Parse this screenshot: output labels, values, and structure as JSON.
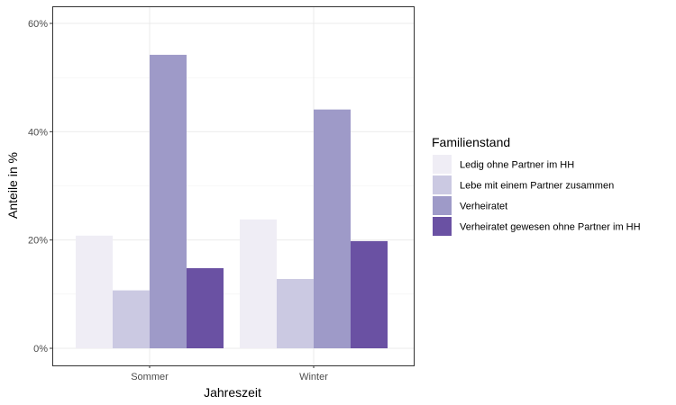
{
  "chart_data": {
    "type": "bar",
    "categories": [
      "Sommer",
      "Winter"
    ],
    "series": [
      {
        "name": "Ledig ohne Partner im HH",
        "values": [
          20.8,
          23.8
        ],
        "color": "#efedf5"
      },
      {
        "name": "Lebe mit einem Partner zusammen",
        "values": [
          10.7,
          12.8
        ],
        "color": "#cbc9e2"
      },
      {
        "name": "Verheiratet",
        "values": [
          54.2,
          44.1
        ],
        "color": "#9e9ac8"
      },
      {
        "name": "Verheiratet gewesen ohne Partner im HH",
        "values": [
          14.8,
          19.8
        ],
        "color": "#6a51a3"
      }
    ],
    "xlabel": "Jahreszeit",
    "ylabel": "Anteile in %",
    "ylim": [
      0,
      63
    ],
    "yticks": [
      0,
      20,
      40,
      60
    ],
    "ytick_labels": [
      "0%",
      "20%",
      "40%",
      "60%"
    ],
    "grid": true,
    "legend": {
      "title": "Familienstand",
      "position": "right"
    }
  }
}
